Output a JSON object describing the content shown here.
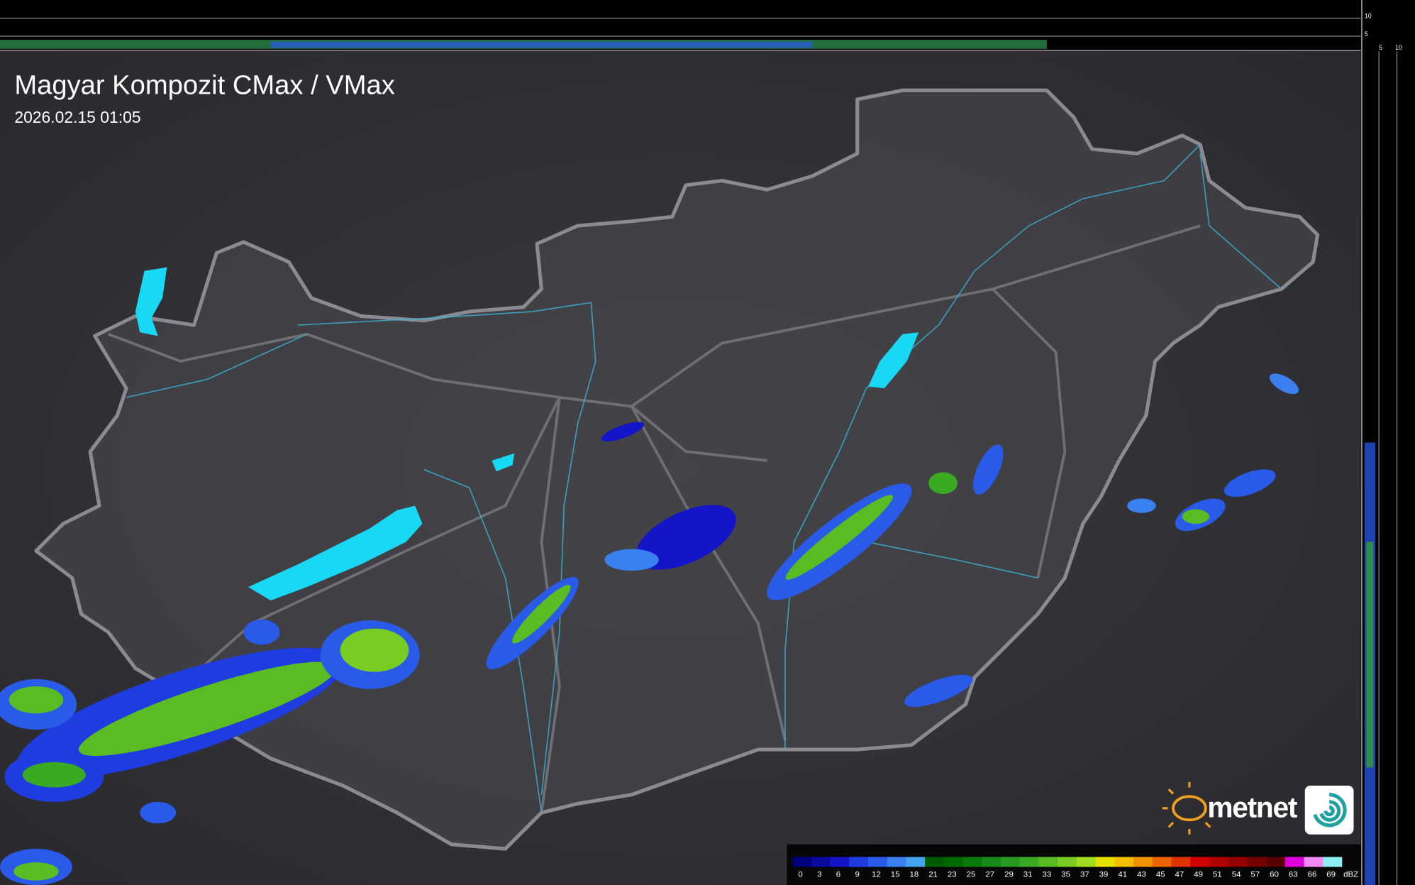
{
  "map": {
    "title": "Magyar Kompozit CMax / VMax",
    "timestamp": "2026.02.15 01:05",
    "logo": "metnet",
    "top_profile_labels": [
      "10",
      "5"
    ],
    "side_profile_labels": [
      "5",
      "10"
    ],
    "legend": {
      "unit": "dBZ",
      "items": [
        {
          "value": 0,
          "color": "#00007a"
        },
        {
          "value": 3,
          "color": "#0a0a9e"
        },
        {
          "value": 6,
          "color": "#1414c8"
        },
        {
          "value": 9,
          "color": "#1e3ce0"
        },
        {
          "value": 12,
          "color": "#2a5ae8"
        },
        {
          "value": 15,
          "color": "#3a80ee"
        },
        {
          "value": 18,
          "color": "#44a4f0"
        },
        {
          "value": 21,
          "color": "#005a00"
        },
        {
          "value": 23,
          "color": "#006a00"
        },
        {
          "value": 25,
          "color": "#0a7a0a"
        },
        {
          "value": 27,
          "color": "#188a18"
        },
        {
          "value": 29,
          "color": "#289a20"
        },
        {
          "value": 31,
          "color": "#3aaa22"
        },
        {
          "value": 33,
          "color": "#58bc22"
        },
        {
          "value": 35,
          "color": "#78cc22"
        },
        {
          "value": 37,
          "color": "#a0dc20"
        },
        {
          "value": 39,
          "color": "#e6e000"
        },
        {
          "value": 41,
          "color": "#f2c000"
        },
        {
          "value": 43,
          "color": "#f29400"
        },
        {
          "value": 45,
          "color": "#ee6400"
        },
        {
          "value": 47,
          "color": "#e03400"
        },
        {
          "value": 49,
          "color": "#d00000"
        },
        {
          "value": 51,
          "color": "#b00000"
        },
        {
          "value": 54,
          "color": "#920000"
        },
        {
          "value": 57,
          "color": "#740000"
        },
        {
          "value": 60,
          "color": "#560000"
        },
        {
          "value": 63,
          "color": "#e000d8"
        },
        {
          "value": 66,
          "color": "#f08cf0"
        },
        {
          "value": 69,
          "color": "#8cf0f0"
        }
      ]
    }
  }
}
